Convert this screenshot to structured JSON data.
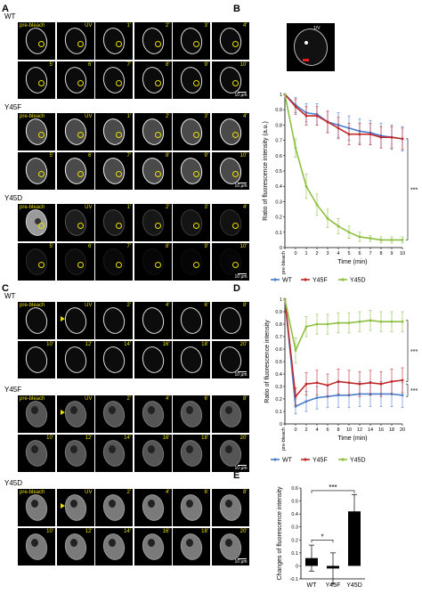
{
  "panels": {
    "A": {
      "label": "A",
      "scale": "10 μm",
      "groups": [
        {
          "name": "WT",
          "cell": "rim",
          "rows": [
            [
              "pre-bleach",
              "UV",
              "1'",
              "2'",
              "3'",
              "4'"
            ],
            [
              "5'",
              "6'",
              "7'",
              "8'",
              "9'",
              "10'"
            ]
          ]
        },
        {
          "name": "Y45F",
          "cell": "bright",
          "rows": [
            [
              "pre-bleach",
              "UV",
              "1'",
              "2'",
              "3'",
              "4'"
            ],
            [
              "5'",
              "6'",
              "7'",
              "8'",
              "9'",
              "10'"
            ]
          ]
        },
        {
          "name": "Y45D",
          "cell": "fading",
          "rows": [
            [
              "pre-bleach",
              "UV",
              "1'",
              "2'",
              "3'",
              "4'"
            ],
            [
              "5'",
              "6'",
              "7'",
              "8'",
              "9'",
              "10'"
            ]
          ]
        }
      ]
    },
    "B": {
      "label": "B",
      "inset_label": "1/V"
    },
    "C": {
      "label": "C",
      "scale": "10 μm",
      "groups": [
        {
          "name": "WT",
          "cell": "rim",
          "rows": [
            [
              "pre-bleach",
              "UV",
              "2'",
              "4'",
              "6'",
              "8'"
            ],
            [
              "10'",
              "12'",
              "14'",
              "16'",
              "18'",
              "20'"
            ]
          ]
        },
        {
          "name": "Y45F",
          "cell": "speckled",
          "rows": [
            [
              "pre-bleach",
              "UV",
              "2'",
              "4'",
              "6'",
              "8'"
            ],
            [
              "10'",
              "12'",
              "14'",
              "16'",
              "18'",
              "20'"
            ]
          ]
        },
        {
          "name": "Y45D",
          "cell": "nucleoplasm",
          "rows": [
            [
              "pre-bleach",
              "UV",
              "2'",
              "4'",
              "6'",
              "8'"
            ],
            [
              "10'",
              "12'",
              "14'",
              "16'",
              "18'",
              "20'"
            ]
          ]
        }
      ]
    },
    "D": {
      "label": "D"
    },
    "E": {
      "label": "E"
    }
  },
  "chart_data": [
    {
      "id": "B",
      "type": "line",
      "ylabel": "Ratio of fluorescence intensity (a.u.)",
      "xlabel": "Time (min)",
      "categories": [
        "pre-bleach",
        "0",
        "1",
        "2",
        "3",
        "4",
        "5",
        "6",
        "7",
        "8",
        "9",
        "10"
      ],
      "ylim": [
        0,
        1
      ],
      "yticks": [
        "0",
        "0.1",
        "0.2",
        "0.3",
        "0.4",
        "0.5",
        "0.6",
        "0.7",
        "0.8",
        "0.9",
        "1"
      ],
      "series": [
        {
          "name": "WT",
          "color": "#4a7fd0",
          "values": [
            1.0,
            0.93,
            0.88,
            0.87,
            0.82,
            0.8,
            0.78,
            0.76,
            0.75,
            0.73,
            0.72,
            0.71
          ],
          "err": [
            0,
            0.05,
            0.06,
            0.07,
            0.07,
            0.08,
            0.08,
            0.08,
            0.08,
            0.08,
            0.08,
            0.08
          ]
        },
        {
          "name": "Y45F",
          "color": "#c0282a",
          "values": [
            1.0,
            0.92,
            0.86,
            0.86,
            0.82,
            0.78,
            0.74,
            0.74,
            0.74,
            0.72,
            0.72,
            0.71
          ],
          "err": [
            0,
            0.05,
            0.06,
            0.06,
            0.07,
            0.07,
            0.07,
            0.07,
            0.07,
            0.07,
            0.07,
            0.07
          ]
        },
        {
          "name": "Y45D",
          "color": "#8dc041",
          "values": [
            1.0,
            0.65,
            0.4,
            0.28,
            0.19,
            0.14,
            0.1,
            0.07,
            0.06,
            0.05,
            0.05,
            0.05
          ],
          "err": [
            0,
            0.06,
            0.08,
            0.07,
            0.06,
            0.05,
            0.04,
            0.03,
            0.02,
            0.02,
            0.02,
            0.02
          ]
        }
      ],
      "legend": [
        "WT",
        "Y45F",
        "Y45D"
      ],
      "annotations": [
        {
          "text": "***"
        }
      ]
    },
    {
      "id": "D",
      "type": "line",
      "ylabel": "Ratio of fluorescence intensity",
      "xlabel": "Time (min)",
      "categories": [
        "pre-bleach",
        "0",
        "2",
        "4",
        "6",
        "8",
        "10",
        "12",
        "14",
        "16",
        "18",
        "20"
      ],
      "ylim": [
        0,
        1
      ],
      "yticks": [
        "0",
        "0.1",
        "0.2",
        "0.3",
        "0.4",
        "0.5",
        "0.6",
        "0.7",
        "0.8",
        "0.9",
        "1"
      ],
      "series": [
        {
          "name": "WT",
          "color": "#4a7fd0",
          "values": [
            1.0,
            0.14,
            0.18,
            0.21,
            0.22,
            0.23,
            0.23,
            0.24,
            0.24,
            0.24,
            0.24,
            0.23
          ],
          "err": [
            0,
            0.06,
            0.08,
            0.09,
            0.09,
            0.1,
            0.1,
            0.1,
            0.1,
            0.1,
            0.1,
            0.1
          ]
        },
        {
          "name": "Y45F",
          "color": "#c0282a",
          "values": [
            1.0,
            0.22,
            0.32,
            0.33,
            0.31,
            0.34,
            0.33,
            0.32,
            0.33,
            0.32,
            0.34,
            0.35
          ],
          "err": [
            0,
            0.07,
            0.09,
            0.1,
            0.09,
            0.1,
            0.1,
            0.1,
            0.1,
            0.1,
            0.1,
            0.1
          ]
        },
        {
          "name": "Y45D",
          "color": "#8dc041",
          "values": [
            1.0,
            0.59,
            0.78,
            0.8,
            0.8,
            0.81,
            0.81,
            0.82,
            0.83,
            0.82,
            0.82,
            0.82
          ],
          "err": [
            0,
            0.1,
            0.08,
            0.08,
            0.08,
            0.08,
            0.08,
            0.08,
            0.08,
            0.08,
            0.08,
            0.08
          ]
        }
      ],
      "legend": [
        "WT",
        "Y45F",
        "Y45D"
      ],
      "annotations": [
        {
          "text": "***"
        },
        {
          "text": "***"
        }
      ]
    },
    {
      "id": "E",
      "type": "bar",
      "ylabel": "Changes of fluorescence intensity",
      "categories": [
        "WT",
        "Y45F",
        "Y45D"
      ],
      "values": [
        0.06,
        -0.02,
        0.42
      ],
      "err": [
        0.1,
        0.12,
        0.13
      ],
      "ylim": [
        -0.1,
        0.6
      ],
      "yticks": [
        "-0.1",
        "0",
        "0.1",
        "0.2",
        "0.3",
        "0.4",
        "0.5",
        "0.6"
      ],
      "annotations": [
        {
          "text": "*"
        },
        {
          "text": "***"
        }
      ]
    }
  ]
}
